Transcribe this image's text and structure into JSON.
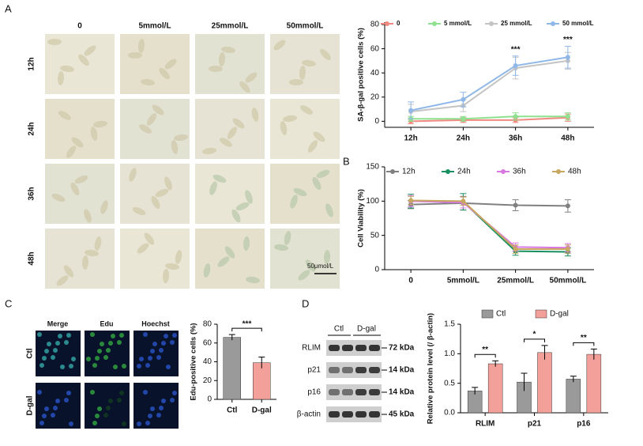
{
  "figure": {
    "panels": [
      "A",
      "B",
      "C",
      "D"
    ],
    "micrographs": {
      "columns": [
        "0",
        "5mmol/L",
        "25mmol/L",
        "50mmol/L"
      ],
      "rows": [
        "12h",
        "24h",
        "36h",
        "48h"
      ],
      "scale_bar": "50μmol/L"
    },
    "fluorescence": {
      "columns": [
        "Merge",
        "Edu",
        "Hoechst"
      ],
      "rows": [
        "Ctl",
        "D-gal"
      ]
    },
    "blot": {
      "groups": [
        "Ctl",
        "D-gal"
      ],
      "proteins": [
        "RLIM",
        "p21",
        "p16",
        "β-actin"
      ],
      "sizes": [
        "72 kDa",
        "14 kDa",
        "14 kDa",
        "45 kDa"
      ]
    }
  },
  "chart_data": [
    {
      "type": "line",
      "ylabel": "SA-β-gal positive cells (%)",
      "categories": [
        "12h",
        "24h",
        "36h",
        "48h"
      ],
      "ylim": [
        -5,
        82
      ],
      "yticks": [
        0,
        20,
        40,
        60,
        80
      ],
      "legend": "top",
      "annotations": [
        null,
        null,
        "***",
        "***"
      ],
      "series": [
        {
          "name": "0",
          "color": "#f08a80",
          "values": [
            0,
            1,
            1,
            3
          ],
          "errors": [
            2,
            2,
            2,
            3
          ]
        },
        {
          "name": "5 mmol/L",
          "color": "#8fe08f",
          "values": [
            2,
            2,
            4,
            4
          ],
          "errors": [
            2,
            2,
            3,
            3
          ]
        },
        {
          "name": "25 mmol/L",
          "color": "#c4c4c4",
          "values": [
            8,
            13,
            44,
            50
          ],
          "errors": [
            6,
            5,
            9,
            7
          ]
        },
        {
          "name": "50 mmol/L",
          "color": "#8fb8e8",
          "values": [
            9,
            18,
            46,
            53
          ],
          "errors": [
            7,
            6,
            8,
            9
          ]
        }
      ]
    },
    {
      "type": "line",
      "ylabel": "Cell Viability (%)",
      "categories": [
        "0",
        "5mmol/L",
        "25mmol/L",
        "50mmol/L"
      ],
      "ylim": [
        0,
        150
      ],
      "yticks": [
        0,
        50,
        100,
        150
      ],
      "legend": "top",
      "series": [
        {
          "name": "12h",
          "color": "#808080",
          "values": [
            95,
            97,
            94,
            93
          ],
          "errors": [
            6,
            10,
            8,
            9
          ]
        },
        {
          "name": "24h",
          "color": "#1a9060",
          "values": [
            100,
            99,
            27,
            26
          ],
          "errors": [
            10,
            12,
            6,
            6
          ]
        },
        {
          "name": "36h",
          "color": "#d878e0",
          "values": [
            100,
            98,
            33,
            32
          ],
          "errors": [
            8,
            8,
            6,
            6
          ]
        },
        {
          "name": "48h",
          "color": "#c8a860",
          "values": [
            101,
            100,
            30,
            30
          ],
          "errors": [
            6,
            6,
            6,
            6
          ]
        }
      ]
    },
    {
      "type": "bar",
      "ylabel": "Edu-positive cells (%)",
      "categories": [
        "Ctl",
        "D-gal"
      ],
      "values": [
        66,
        39
      ],
      "errors": [
        3,
        6
      ],
      "colors": [
        "#9a9a9a",
        "#f4a09a"
      ],
      "ylim": [
        0,
        80
      ],
      "yticks": [
        0,
        20,
        40,
        60,
        80
      ],
      "annotation": "***"
    },
    {
      "type": "grouped-bar",
      "ylabel": "Relative protein level (/ β-actin)",
      "categories": [
        "RLIM",
        "p21",
        "p16"
      ],
      "ylim": [
        0,
        1.5
      ],
      "yticks": [
        {
          "value": 0,
          "label": "0.0"
        },
        0.5,
        {
          "value": 1,
          "label": "1.0"
        },
        1.5
      ],
      "legend": "top",
      "annotations": [
        "**",
        "*",
        "**"
      ],
      "series": [
        {
          "name": "Ctl",
          "color": "#9a9a9a",
          "values": [
            0.37,
            0.52,
            0.57
          ],
          "errors": [
            0.06,
            0.15,
            0.05
          ]
        },
        {
          "name": "D-gal",
          "color": "#f4a09a",
          "values": [
            0.83,
            1.02,
            0.99
          ],
          "errors": [
            0.05,
            0.12,
            0.09
          ]
        }
      ]
    }
  ]
}
